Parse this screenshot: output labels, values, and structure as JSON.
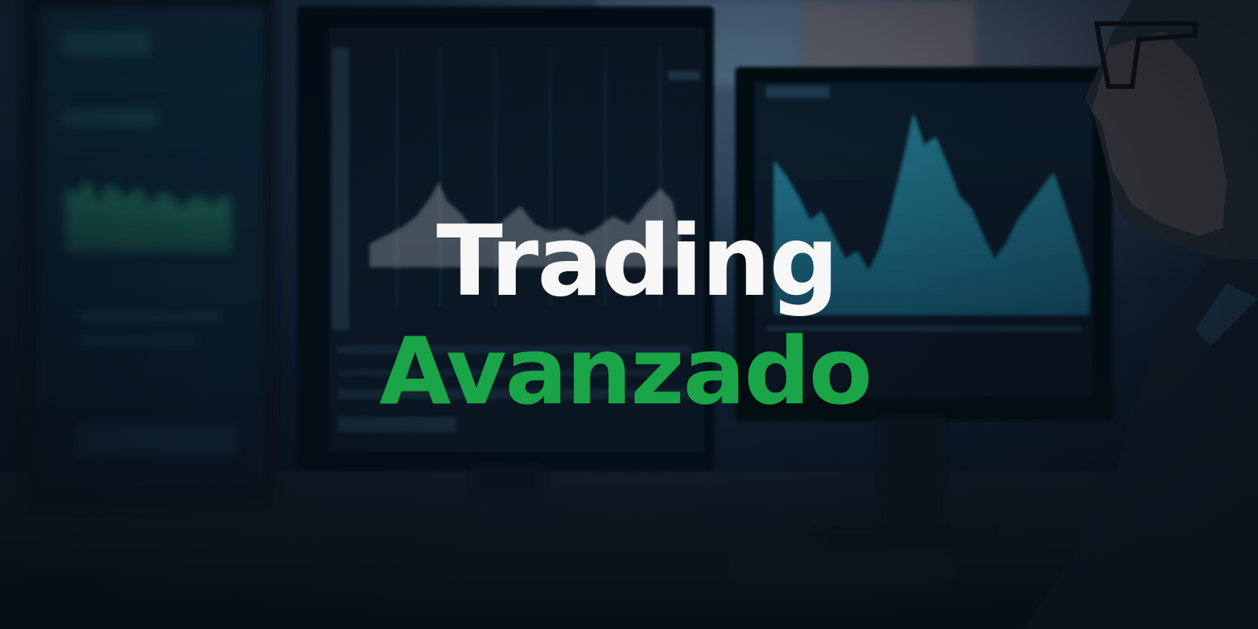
{
  "headline": {
    "line1": "Trading",
    "line2": "Avanzado"
  },
  "colors": {
    "line1": "#f7f7f7",
    "line2": "#1aa548",
    "background": "#0a1522"
  },
  "photo": "blurred-trading-desk-with-monitors-and-man"
}
